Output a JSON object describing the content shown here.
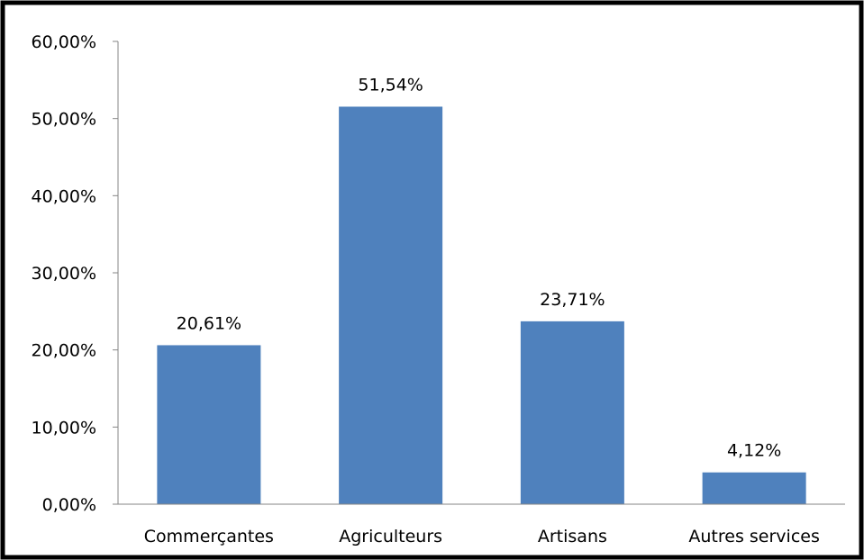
{
  "chart_data": {
    "type": "bar",
    "categories": [
      "Commerçantes",
      "Agriculteurs",
      "Artisans",
      "Autres services"
    ],
    "values": [
      20.61,
      51.54,
      23.71,
      4.12
    ],
    "data_labels": [
      "20,61%",
      "51,54%",
      "23,71%",
      "4,12%"
    ],
    "y_tick_labels": [
      "0,00%",
      "10,00%",
      "20,00%",
      "30,00%",
      "40,00%",
      "50,00%",
      "60,00%"
    ],
    "y_ticks": [
      0,
      10,
      20,
      30,
      40,
      50,
      60
    ],
    "ylim": [
      0,
      60
    ],
    "grid": false,
    "legend": "none",
    "bar_color": "#4F81BD"
  }
}
